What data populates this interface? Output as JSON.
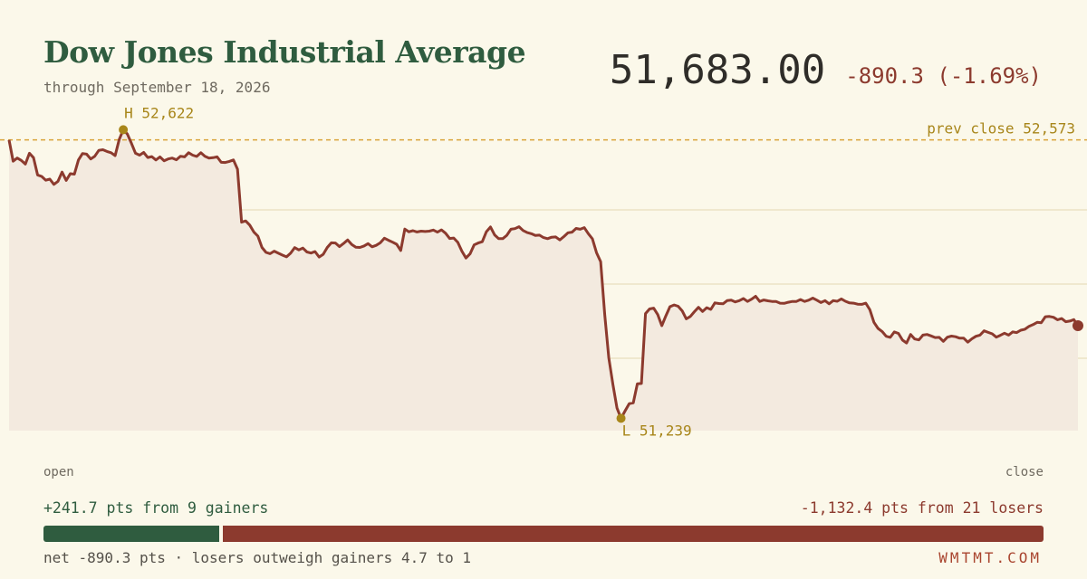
{
  "header": {
    "title": "Dow Jones Industrial Average",
    "subtitle": "through September 18, 2026",
    "price": "51,683.00",
    "change": "-890.3 (-1.69%)"
  },
  "colors": {
    "background": "#fbf8ea",
    "line": "#8c3a2e",
    "area_fill": "#f3eadf",
    "gain": "#2f5c3f",
    "loss": "#8c3a2e",
    "reference": "#d9a43a",
    "annotation": "#a8861a",
    "gridline": "#ebe2c5"
  },
  "chart_data": {
    "type": "area",
    "y_unit": "index points",
    "ylim": [
      51180,
      52680
    ],
    "grid": true,
    "prev_close": 52573,
    "high": 52622,
    "low": 51239,
    "close": 51683,
    "y": [
      52573,
      52471,
      52486,
      52475,
      52457,
      52509,
      52488,
      52405,
      52398,
      52380,
      52385,
      52360,
      52375,
      52419,
      52379,
      52411,
      52409,
      52477,
      52508,
      52505,
      52482,
      52495,
      52523,
      52526,
      52518,
      52512,
      52498,
      52575,
      52622,
      52601,
      52557,
      52509,
      52500,
      52513,
      52489,
      52493,
      52477,
      52492,
      52473,
      52482,
      52486,
      52478,
      52495,
      52492,
      52512,
      52500,
      52494,
      52512,
      52495,
      52486,
      52488,
      52492,
      52466,
      52465,
      52470,
      52477,
      52433,
      52179,
      52185,
      52165,
      52132,
      52112,
      52058,
      52034,
      52028,
      52040,
      52030,
      52021,
      52013,
      52030,
      52057,
      52046,
      52055,
      52036,
      52031,
      52038,
      52012,
      52025,
      52058,
      52080,
      52079,
      52062,
      52077,
      52094,
      52072,
      52059,
      52058,
      52065,
      52076,
      52061,
      52068,
      52080,
      52102,
      52092,
      52083,
      52073,
      52043,
      52146,
      52133,
      52138,
      52132,
      52136,
      52134,
      52136,
      52141,
      52131,
      52142,
      52126,
      52101,
      52103,
      52082,
      52040,
      52007,
      52027,
      52070,
      52079,
      52085,
      52133,
      52156,
      52118,
      52100,
      52100,
      52116,
      52145,
      52148,
      52157,
      52139,
      52129,
      52124,
      52115,
      52117,
      52105,
      52100,
      52107,
      52108,
      52094,
      52110,
      52128,
      52131,
      52149,
      52145,
      52153,
      52124,
      52099,
      52033,
      51990,
      51736,
      51528,
      51402,
      51289,
      51239,
      51275,
      51309,
      51313,
      51404,
      51406,
      51741,
      51763,
      51767,
      51736,
      51683,
      51730,
      51774,
      51782,
      51776,
      51754,
      51716,
      51727,
      51750,
      51771,
      51751,
      51769,
      51761,
      51792,
      51789,
      51788,
      51803,
      51805,
      51797,
      51803,
      51813,
      51799,
      51810,
      51824,
      51799,
      51806,
      51802,
      51799,
      51799,
      51791,
      51790,
      51795,
      51799,
      51799,
      51808,
      51799,
      51805,
      51815,
      51805,
      51794,
      51803,
      51788,
      51803,
      51800,
      51811,
      51800,
      51792,
      51791,
      51786,
      51785,
      51791,
      51759,
      51699,
      51670,
      51655,
      51632,
      51627,
      51653,
      51646,
      51614,
      51600,
      51641,
      51619,
      51615,
      51638,
      51641,
      51634,
      51626,
      51627,
      51608,
      51628,
      51633,
      51630,
      51623,
      51623,
      51604,
      51620,
      51632,
      51638,
      51658,
      51651,
      51644,
      51628,
      51637,
      51647,
      51638,
      51653,
      51650,
      51661,
      51666,
      51680,
      51688,
      51699,
      51697,
      51726,
      51727,
      51723,
      51711,
      51717,
      51702,
      51705,
      51712,
      51683
    ]
  },
  "annotations": {
    "high_label": "H 52,622",
    "low_label": "L 51,239",
    "prev_close_label": "prev close 52,573"
  },
  "axis": {
    "open_label": "open",
    "close_label": "close"
  },
  "breadth": {
    "gainers_text": "+241.7 pts from 9 gainers",
    "losers_text": "-1,132.4 pts from 21 losers",
    "gainers_points": 241.7,
    "losers_points": 1132.4,
    "footnote": "net -890.3 pts · losers outweigh gainers 4.7 to 1",
    "brand": "WMTMT.COM"
  }
}
